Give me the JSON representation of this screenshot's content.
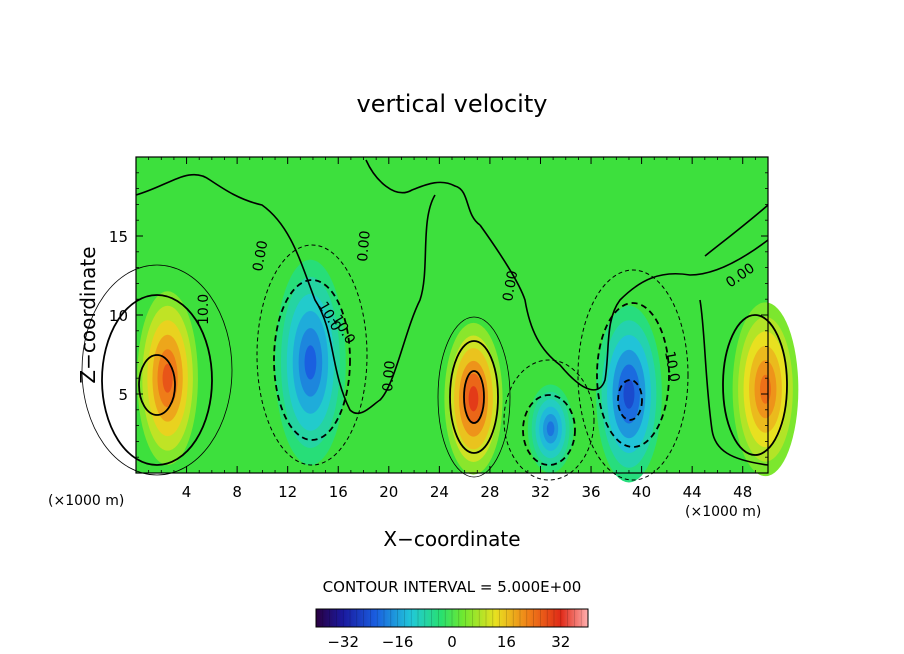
{
  "chart_data": {
    "type": "heatmap",
    "title": "vertical velocity",
    "xlabel": "X−coordinate",
    "ylabel": "Z−coordinate",
    "x_unit": "(×1000 m)",
    "y_unit": "(×1000 m)",
    "xlim": [
      0,
      50
    ],
    "ylim": [
      0,
      20
    ],
    "x_ticks": [
      4,
      8,
      12,
      16,
      20,
      24,
      28,
      32,
      36,
      40,
      44,
      48
    ],
    "y_ticks": [
      5,
      10,
      15
    ],
    "contour_interval_text": "CONTOUR INTERVAL = 5.000E+00",
    "contour_labels": [
      "0.00",
      "0.00",
      "0.00",
      "0.00",
      "0.00",
      "10.0",
      "10.0",
      "10.0",
      "10.0"
    ],
    "colorbar": {
      "range": [
        -40,
        40
      ],
      "ticks": [
        -32,
        -16,
        0,
        16,
        32
      ],
      "tick_labels": [
        "−32",
        "−16",
        "0",
        "16",
        "32"
      ]
    },
    "cells": [
      {
        "x": 2.5,
        "z": 6.0,
        "value": 27,
        "rx": 2.4,
        "rz": 5.5
      },
      {
        "x": 13.8,
        "z": 7.0,
        "value": -22,
        "rx": 2.8,
        "rz": 6.5
      },
      {
        "x": 26.7,
        "z": 4.7,
        "value": 30,
        "rx": 2.3,
        "rz": 4.8
      },
      {
        "x": 32.8,
        "z": 2.8,
        "value": -20,
        "rx": 1.8,
        "rz": 2.8
      },
      {
        "x": 39.0,
        "z": 5.0,
        "value": -25,
        "rx": 2.6,
        "rz": 5.6
      },
      {
        "x": 49.8,
        "z": 5.3,
        "value": 24,
        "rx": 2.6,
        "rz": 5.5
      }
    ]
  }
}
